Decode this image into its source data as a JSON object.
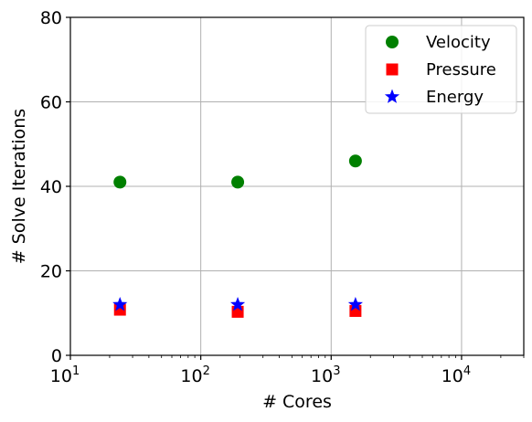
{
  "chart_data": {
    "type": "scatter",
    "xlabel": "# Cores",
    "ylabel": "# Solve Iterations",
    "xscale": "log",
    "xlim": [
      10,
      30000
    ],
    "ylim": [
      0,
      80
    ],
    "xticks": [
      10,
      100,
      1000,
      10000
    ],
    "xtick_labels": [
      {
        "base": "10",
        "exp": "1"
      },
      {
        "base": "10",
        "exp": "2"
      },
      {
        "base": "10",
        "exp": "3"
      },
      {
        "base": "10",
        "exp": "4"
      }
    ],
    "yticks": [
      0,
      20,
      40,
      60,
      80
    ],
    "grid": true,
    "legend_position": "top-right",
    "series": [
      {
        "name": "Velocity",
        "marker": "circle",
        "color": "#008000",
        "x": [
          24,
          192,
          1536
        ],
        "y": [
          41,
          41,
          46
        ]
      },
      {
        "name": "Pressure",
        "marker": "square",
        "color": "#ff0000",
        "x": [
          24,
          192,
          1536
        ],
        "y": [
          10.8,
          10.3,
          10.5
        ]
      },
      {
        "name": "Energy",
        "marker": "star",
        "color": "#0000ff",
        "x": [
          24,
          192,
          1536
        ],
        "y": [
          12,
          12,
          12
        ]
      }
    ]
  }
}
